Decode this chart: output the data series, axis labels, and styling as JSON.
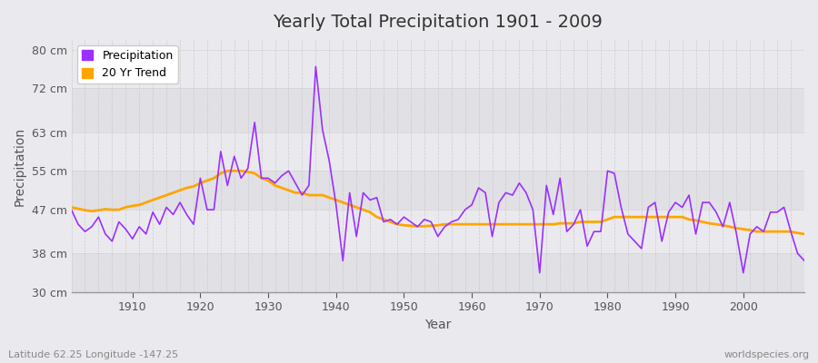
{
  "title": "Yearly Total Precipitation 1901 - 2009",
  "xlabel": "Year",
  "ylabel": "Precipitation",
  "bottom_left_label": "Latitude 62.25 Longitude -147.25",
  "bottom_right_label": "worldspecies.org",
  "ylim": [
    30,
    82
  ],
  "yticks": [
    30,
    38,
    47,
    55,
    63,
    72,
    80
  ],
  "ytick_labels": [
    "30 cm",
    "38 cm",
    "47 cm",
    "55 cm",
    "63 cm",
    "72 cm",
    "80 cm"
  ],
  "xlim": [
    1901,
    2009
  ],
  "precip_color": "#9B30FF",
  "trend_color": "#FFA500",
  "background_color": "#EAEAEE",
  "band_colors": [
    "#E0E0E5",
    "#EAEAEE"
  ],
  "grid_color": "#FFFFFF",
  "years": [
    1901,
    1902,
    1903,
    1904,
    1905,
    1906,
    1907,
    1908,
    1909,
    1910,
    1911,
    1912,
    1913,
    1914,
    1915,
    1916,
    1917,
    1918,
    1919,
    1920,
    1921,
    1922,
    1923,
    1924,
    1925,
    1926,
    1927,
    1928,
    1929,
    1930,
    1931,
    1932,
    1933,
    1934,
    1935,
    1936,
    1937,
    1938,
    1939,
    1940,
    1941,
    1942,
    1943,
    1944,
    1945,
    1946,
    1947,
    1948,
    1949,
    1950,
    1951,
    1952,
    1953,
    1954,
    1955,
    1956,
    1957,
    1958,
    1959,
    1960,
    1961,
    1962,
    1963,
    1964,
    1965,
    1966,
    1967,
    1968,
    1969,
    1970,
    1971,
    1972,
    1973,
    1974,
    1975,
    1976,
    1977,
    1978,
    1979,
    1980,
    1981,
    1982,
    1983,
    1984,
    1985,
    1986,
    1987,
    1988,
    1989,
    1990,
    1991,
    1992,
    1993,
    1994,
    1995,
    1996,
    1997,
    1998,
    1999,
    2000,
    2001,
    2002,
    2003,
    2004,
    2005,
    2006,
    2007,
    2008,
    2009
  ],
  "precip": [
    47.0,
    44.0,
    42.5,
    43.5,
    45.5,
    42.0,
    40.5,
    44.5,
    43.0,
    41.0,
    43.5,
    42.0,
    46.5,
    44.0,
    47.5,
    46.0,
    48.5,
    46.0,
    44.0,
    53.5,
    47.0,
    47.0,
    59.0,
    52.0,
    58.0,
    53.5,
    55.5,
    65.0,
    53.5,
    53.5,
    52.5,
    54.0,
    55.0,
    52.5,
    50.0,
    52.0,
    76.5,
    63.5,
    57.0,
    48.0,
    36.5,
    50.5,
    41.5,
    50.5,
    49.0,
    49.5,
    44.5,
    45.0,
    44.0,
    45.5,
    44.5,
    43.5,
    45.0,
    44.5,
    41.5,
    43.5,
    44.5,
    45.0,
    47.0,
    48.0,
    51.5,
    50.5,
    41.5,
    48.5,
    50.5,
    50.0,
    52.5,
    50.5,
    47.0,
    34.0,
    52.0,
    46.0,
    53.5,
    42.5,
    44.0,
    47.0,
    39.5,
    42.5,
    42.5,
    55.0,
    54.5,
    47.5,
    42.0,
    40.5,
    39.0,
    47.5,
    48.5,
    40.5,
    46.5,
    48.5,
    47.5,
    50.0,
    42.0,
    48.5,
    48.5,
    46.5,
    43.5,
    48.5,
    42.0,
    34.0,
    42.0,
    43.5,
    42.5,
    46.5,
    46.5,
    47.5,
    42.5,
    38.0,
    36.5
  ],
  "trend": [
    47.5,
    47.2,
    46.9,
    46.7,
    46.9,
    47.1,
    47.0,
    47.0,
    47.5,
    47.8,
    48.0,
    48.5,
    49.0,
    49.5,
    50.0,
    50.5,
    51.0,
    51.5,
    51.8,
    52.5,
    53.0,
    53.5,
    54.5,
    55.0,
    55.0,
    55.0,
    54.8,
    54.5,
    53.5,
    53.0,
    52.0,
    51.5,
    51.0,
    50.5,
    50.5,
    50.0,
    50.0,
    50.0,
    49.5,
    49.0,
    48.5,
    48.0,
    47.5,
    47.0,
    46.5,
    45.5,
    45.0,
    44.5,
    44.0,
    43.8,
    43.7,
    43.6,
    43.6,
    43.7,
    43.8,
    44.0,
    44.0,
    44.0,
    44.0,
    44.0,
    44.0,
    44.0,
    44.0,
    44.0,
    44.0,
    44.0,
    44.0,
    44.0,
    44.0,
    44.0,
    44.0,
    44.0,
    44.2,
    44.2,
    44.2,
    44.5,
    44.5,
    44.5,
    44.5,
    45.0,
    45.5,
    45.5,
    45.5,
    45.5,
    45.5,
    45.5,
    45.5,
    45.5,
    45.5,
    45.5,
    45.5,
    45.0,
    44.8,
    44.5,
    44.2,
    44.0,
    43.8,
    43.5,
    43.2,
    43.0,
    42.8,
    42.5,
    42.5,
    42.5,
    42.5,
    42.5,
    42.5,
    42.2,
    42.0
  ]
}
